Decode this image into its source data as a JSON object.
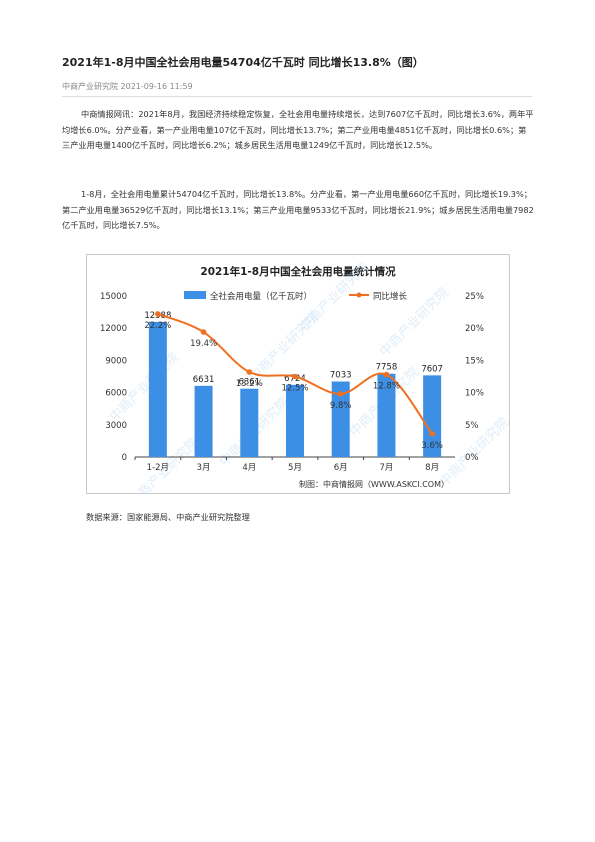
{
  "article": {
    "title": "2021年1-8月中国全社会用电量54704亿千瓦时 同比增长13.8%（图）",
    "meta": "中商产业研究院 2021-09-16 11:59",
    "paragraphs": [
      "中商情报网讯：2021年8月，我国经济持续稳定恢复，全社会用电量持续增长，达到7607亿千瓦时，同比增长3.6%，两年平均增长6.0%。分产业看，第一产业用电量107亿千瓦时，同比增长13.7%；第二产业用电量4851亿千瓦时，同比增长0.6%；第三产业用电量1400亿千瓦时，同比增长6.2%；城乡居民生活用电量1249亿千瓦时，同比增长12.5%。",
      "1-8月，全社会用电量累计54704亿千瓦时，同比增长13.8%。分产业看，第一产业用电量660亿千瓦时，同比增长19.3%；第二产业用电量36529亿千瓦时，同比增长13.1%；第三产业用电量9533亿千瓦时，同比增长21.9%；城乡居民生活用电量7982亿千瓦时，同比增长7.5%。"
    ],
    "source": "数据来源：国家能源局、中商产业研究院整理"
  },
  "chart_data": {
    "type": "bar",
    "title": "2021年1-8月中国全社会用电量统计情况",
    "categories": [
      "1-2月",
      "3月",
      "4月",
      "5月",
      "6月",
      "7月",
      "8月"
    ],
    "series": [
      {
        "name": "全社会用电量（亿千瓦时）",
        "type": "bar",
        "axis": "left",
        "values": [
          12588,
          6631,
          6361,
          6724,
          7033,
          7758,
          7607
        ],
        "labels": [
          "12588",
          "6631",
          "6361",
          "6724",
          "7033",
          "7758",
          "7607"
        ]
      },
      {
        "name": "同比增长",
        "type": "line",
        "axis": "right",
        "values": [
          22.2,
          19.4,
          13.2,
          12.5,
          9.8,
          12.8,
          3.6
        ],
        "labels": [
          "22.2%",
          "19.4%",
          "13.2%",
          "12.5%",
          "9.8%",
          "12.8%",
          "3.6%"
        ]
      }
    ],
    "left_axis": {
      "ylim": [
        0,
        15000
      ],
      "ticks": [
        "0",
        "3000",
        "6000",
        "9000",
        "12000",
        "15000"
      ]
    },
    "right_axis": {
      "ylim": [
        0,
        25
      ],
      "ticks": [
        "0%",
        "5%",
        "10%",
        "15%",
        "20%",
        "25%"
      ]
    },
    "legend": "top",
    "grid": false,
    "credit": "制图：中商情报网（WWW.ASKCI.COM）",
    "watermark": "中商产业研究院",
    "colors": {
      "bar": "#3d8fe6",
      "line": "#f07020"
    }
  }
}
